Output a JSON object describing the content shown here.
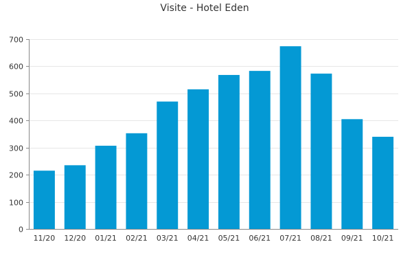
{
  "chart_data": {
    "type": "bar",
    "title": "Visite - Hotel Eden",
    "xlabel": "",
    "ylabel": "",
    "categories": [
      "11/20",
      "12/20",
      "01/21",
      "02/21",
      "03/21",
      "04/21",
      "05/21",
      "06/21",
      "07/21",
      "08/21",
      "09/21",
      "10/21"
    ],
    "series": [
      {
        "values": [
          215,
          235,
          307,
          353,
          470,
          515,
          568,
          583,
          674,
          573,
          405,
          340
        ]
      }
    ],
    "ylim": [
      0,
      700
    ],
    "yticks": [
      0,
      100,
      200,
      300,
      400,
      500,
      600,
      700
    ],
    "grid": true,
    "legend": "none",
    "colors": {
      "bar": "#0499d4",
      "grid": "#e6e6e6",
      "axis": "#888888",
      "text": "#333333"
    }
  }
}
